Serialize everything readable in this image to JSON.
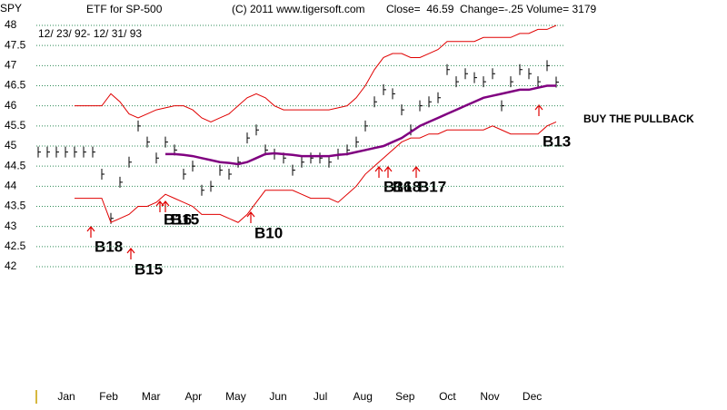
{
  "chart_data": {
    "type": "line",
    "ticker": "SPY",
    "title": "ETF for SP-500",
    "copyright": "(C) 2011 www.tigersoft.com",
    "stats": "Close=  46.59  Change=-.25 Volume= 3179",
    "date_range": "12/ 23/ 92- 12/ 31/ 93",
    "months": [
      "Jan",
      "Feb",
      "Mar",
      "Apr",
      "May",
      "Jun",
      "Jul",
      "Aug",
      "Sep",
      "Oct",
      "Nov",
      "Dec"
    ],
    "ylim": [
      42,
      48
    ],
    "yticks": [
      42,
      42.5,
      43,
      43.5,
      44,
      44.5,
      45,
      45.5,
      46,
      46.5,
      47,
      47.5,
      48
    ],
    "grid": true,
    "series": [
      {
        "name": "price",
        "color": "#000000",
        "style": "bars",
        "values": [
          44.85,
          44.85,
          44.85,
          44.85,
          44.85,
          44.85,
          44.85,
          44.3,
          43.2,
          44.1,
          44.6,
          45.5,
          45.1,
          44.7,
          45.1,
          44.9,
          44.3,
          44.5,
          43.9,
          44.0,
          44.4,
          44.3,
          44.6,
          45.2,
          45.4,
          44.9,
          44.8,
          44.7,
          44.4,
          44.6,
          44.7,
          44.7,
          44.6,
          44.8,
          44.9,
          45.1,
          45.5,
          46.1,
          46.4,
          46.3,
          45.9,
          45.4,
          46.0,
          46.1,
          46.2,
          46.9,
          46.6,
          46.8,
          46.7,
          46.6,
          46.8,
          46.0,
          46.6,
          46.9,
          46.8,
          46.6,
          47.0,
          46.59
        ]
      },
      {
        "name": "upper band",
        "color": "#e00000",
        "style": "line",
        "values": [
          null,
          null,
          null,
          null,
          46.0,
          46.0,
          46.0,
          46.0,
          46.3,
          46.1,
          45.8,
          45.7,
          45.8,
          45.9,
          45.95,
          46.0,
          46.0,
          45.9,
          45.7,
          45.6,
          45.7,
          45.8,
          46.0,
          46.2,
          46.3,
          46.2,
          46.0,
          45.9,
          45.9,
          45.9,
          45.9,
          45.9,
          45.9,
          45.95,
          46.0,
          46.2,
          46.5,
          46.9,
          47.2,
          47.3,
          47.3,
          47.2,
          47.2,
          47.3,
          47.4,
          47.6,
          47.6,
          47.6,
          47.6,
          47.7,
          47.7,
          47.7,
          47.7,
          47.8,
          47.8,
          47.9,
          47.9,
          48.0
        ]
      },
      {
        "name": "lower band",
        "color": "#e00000",
        "style": "line",
        "values": [
          null,
          null,
          null,
          null,
          43.7,
          43.7,
          43.7,
          43.7,
          43.1,
          43.2,
          43.3,
          43.5,
          43.5,
          43.6,
          43.8,
          43.7,
          43.6,
          43.5,
          43.3,
          43.3,
          43.3,
          43.2,
          43.1,
          43.3,
          43.6,
          43.9,
          43.9,
          43.9,
          43.9,
          43.8,
          43.7,
          43.7,
          43.7,
          43.6,
          43.8,
          44.0,
          44.3,
          44.5,
          44.7,
          44.9,
          45.1,
          45.2,
          45.2,
          45.3,
          45.3,
          45.4,
          45.4,
          45.4,
          45.4,
          45.4,
          45.5,
          45.4,
          45.3,
          45.3,
          45.3,
          45.3,
          45.5,
          45.6
        ]
      },
      {
        "name": "moving average",
        "color": "#800080",
        "style": "thick",
        "values": [
          null,
          null,
          null,
          null,
          null,
          null,
          null,
          null,
          null,
          null,
          null,
          null,
          null,
          null,
          44.8,
          44.8,
          44.78,
          44.75,
          44.7,
          44.65,
          44.6,
          44.58,
          44.55,
          44.6,
          44.7,
          44.8,
          44.82,
          44.8,
          44.78,
          44.75,
          44.75,
          44.75,
          44.75,
          44.78,
          44.8,
          44.85,
          44.9,
          44.95,
          45.0,
          45.1,
          45.2,
          45.35,
          45.5,
          45.6,
          45.7,
          45.8,
          45.9,
          46.0,
          46.1,
          46.2,
          46.25,
          46.3,
          46.35,
          46.4,
          46.4,
          46.45,
          46.5,
          46.5
        ]
      }
    ],
    "annotations": [
      "B18",
      "B15",
      "B16",
      "B15",
      "B10",
      "B16",
      "B18",
      "B17",
      "B13",
      "BUY THE PULLBACK"
    ]
  }
}
